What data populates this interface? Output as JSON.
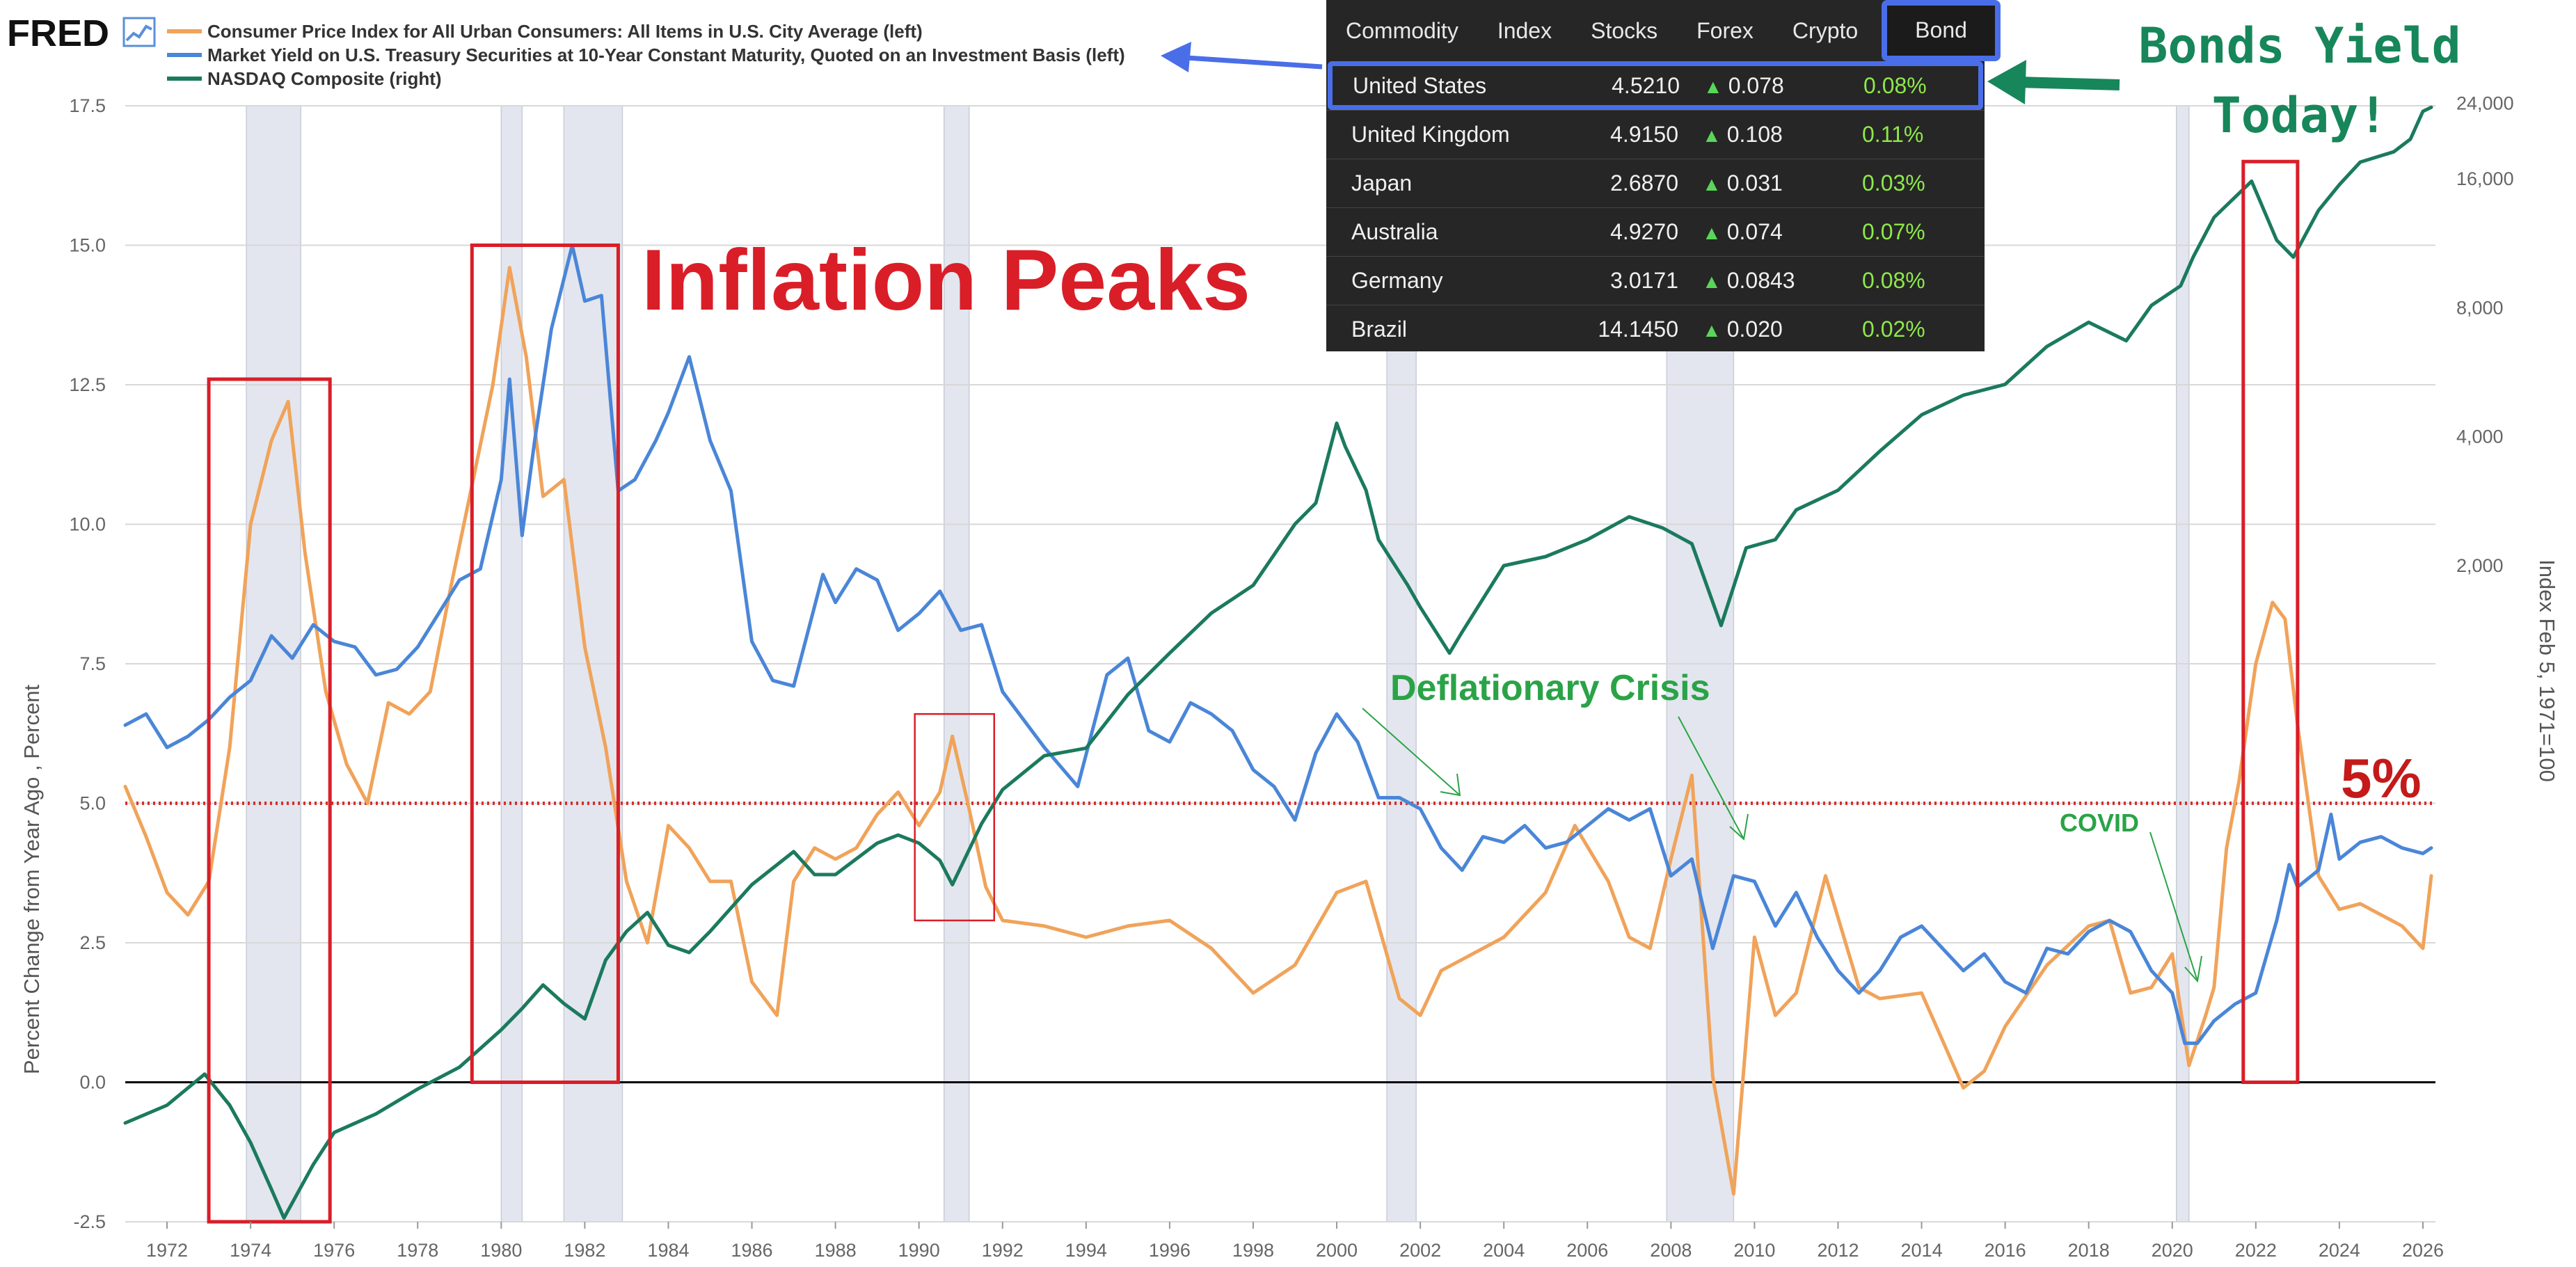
{
  "header": {
    "logo": "FRED",
    "legend": [
      {
        "name": "Consumer Price Index for All Urban Consumers: All Items in U.S. City Average (left)",
        "color": "#f0a35a"
      },
      {
        "name": "Market Yield on U.S. Treasury Securities at 10-Year Constant Maturity, Quoted on an Investment Basis (left)",
        "color": "#4a86d8"
      },
      {
        "name": "NASDAQ Composite (right)",
        "color": "#1b7a5e"
      }
    ]
  },
  "bond_widget": {
    "tabs": [
      "Commodity",
      "Index",
      "Stocks",
      "Forex",
      "Crypto",
      "Bond"
    ],
    "active_tab": "Bond",
    "rows": [
      {
        "country": "United States",
        "yield": "4.5210",
        "change": "0.078",
        "pct": "0.08%"
      },
      {
        "country": "United Kingdom",
        "yield": "4.9150",
        "change": "0.108",
        "pct": "0.11%"
      },
      {
        "country": "Japan",
        "yield": "2.6870",
        "change": "0.031",
        "pct": "0.03%"
      },
      {
        "country": "Australia",
        "yield": "4.9270",
        "change": "0.074",
        "pct": "0.07%"
      },
      {
        "country": "Germany",
        "yield": "3.0171",
        "change": "0.0843",
        "pct": "0.08%"
      },
      {
        "country": "Brazil",
        "yield": "14.1450",
        "change": "0.020",
        "pct": "0.02%"
      }
    ]
  },
  "annotations": {
    "inflation_peaks": "Inflation Peaks",
    "deflationary_crisis": "Deflationary Crisis",
    "covid": "COVID",
    "five_percent": "5%",
    "bonds_line1": "Bonds Yield",
    "bonds_line2": "Today!"
  },
  "chart_data": {
    "type": "line",
    "title": "",
    "ylabel_left": "Percent Change from Year Ago , Percent",
    "ylabel_right": "Index Feb 5, 1971=100",
    "xlim": [
      1971,
      2026.3
    ],
    "ylim_left": [
      -2.5,
      17.5
    ],
    "yticks_left": [
      -2.5,
      0.0,
      2.5,
      5.0,
      7.5,
      10.0,
      12.5,
      15.0,
      17.5
    ],
    "ytick_labels_left": [
      "-2.5",
      "0.0",
      "2.5",
      "5.0",
      "7.5",
      "10.0",
      "12.5",
      "15.0",
      "17.5"
    ],
    "yticks_right": [
      2000,
      4000,
      8000,
      16000,
      24000
    ],
    "ytick_labels_right": [
      "2,000",
      "4,000",
      "8,000",
      "16,000",
      "24,000"
    ],
    "xticks": [
      1972,
      1974,
      1976,
      1978,
      1980,
      1982,
      1984,
      1986,
      1988,
      1990,
      1992,
      1994,
      1996,
      1998,
      2000,
      2002,
      2004,
      2006,
      2008,
      2010,
      2012,
      2014,
      2016,
      2018,
      2020,
      2022,
      2024,
      2026
    ],
    "recessions": [
      [
        1973.9,
        1975.2
      ],
      [
        1980.0,
        1980.5
      ],
      [
        1981.5,
        1982.9
      ],
      [
        1990.6,
        1991.2
      ],
      [
        2001.2,
        2001.9
      ],
      [
        2007.9,
        2009.5
      ],
      [
        2020.1,
        2020.4
      ]
    ],
    "reference_line": {
      "y": 5.0,
      "style": "dotted",
      "color": "#d32f2f"
    },
    "zero_line": {
      "y": 0.0,
      "color": "#000000"
    },
    "highlight_boxes": [
      {
        "x0": 1973.0,
        "x1": 1975.9,
        "y0": -2.5,
        "y1": 12.6
      },
      {
        "x0": 1979.3,
        "x1": 1982.8,
        "y0": 0.0,
        "y1": 15.0
      },
      {
        "x0": 1989.9,
        "x1": 1991.8,
        "y0": 2.9,
        "y1": 6.6
      },
      {
        "x0": 2021.7,
        "x1": 2023.0,
        "y0": 0.0,
        "y1": 16.5
      }
    ],
    "series": [
      {
        "name": "Consumer Price Index for All Urban Consumers: All Items in U.S. City Average (left)",
        "color": "#f0a35a",
        "axis": "left",
        "x": [
          1971.0,
          1971.5,
          1972.0,
          1972.5,
          1973.0,
          1973.5,
          1974.0,
          1974.5,
          1974.9,
          1975.3,
          1975.8,
          1976.3,
          1976.8,
          1977.3,
          1977.8,
          1978.3,
          1978.8,
          1979.3,
          1979.8,
          1980.2,
          1980.6,
          1981.0,
          1981.5,
          1982.0,
          1982.5,
          1983.0,
          1983.5,
          1984.0,
          1984.5,
          1985.0,
          1985.5,
          1986.0,
          1986.6,
          1987.0,
          1987.5,
          1988.0,
          1988.5,
          1989.0,
          1989.5,
          1990.0,
          1990.5,
          1990.8,
          1991.2,
          1991.6,
          1992.0,
          1993.0,
          1994.0,
          1995.0,
          1996.0,
          1997.0,
          1998.0,
          1999.0,
          2000.0,
          2000.7,
          2001.5,
          2002.0,
          2002.5,
          2003.0,
          2004.0,
          2005.0,
          2005.7,
          2006.5,
          2007.0,
          2007.5,
          2008.0,
          2008.5,
          2009.0,
          2009.5,
          2010.0,
          2010.5,
          2011.0,
          2011.7,
          2012.5,
          2013.0,
          2014.0,
          2015.0,
          2015.5,
          2016.0,
          2017.0,
          2018.0,
          2018.5,
          2019.0,
          2019.5,
          2020.0,
          2020.4,
          2020.8,
          2021.0,
          2021.3,
          2021.6,
          2022.0,
          2022.4,
          2022.7,
          2023.0,
          2023.5,
          2024.0,
          2024.5,
          2025.0,
          2025.5,
          2026.0,
          2026.2
        ],
        "y": [
          5.3,
          4.4,
          3.4,
          3.0,
          3.6,
          6.0,
          10.0,
          11.5,
          12.2,
          9.5,
          7.0,
          5.7,
          5.0,
          6.8,
          6.6,
          7.0,
          8.9,
          10.7,
          12.5,
          14.6,
          13.0,
          10.5,
          10.8,
          7.8,
          6.0,
          3.6,
          2.5,
          4.6,
          4.2,
          3.6,
          3.6,
          1.8,
          1.2,
          3.6,
          4.2,
          4.0,
          4.2,
          4.8,
          5.2,
          4.6,
          5.2,
          6.2,
          4.9,
          3.5,
          2.9,
          2.8,
          2.6,
          2.8,
          2.9,
          2.4,
          1.6,
          2.1,
          3.4,
          3.6,
          1.5,
          1.2,
          2.0,
          2.2,
          2.6,
          3.4,
          4.6,
          3.6,
          2.6,
          2.4,
          4.0,
          5.5,
          0.1,
          -2.0,
          2.6,
          1.2,
          1.6,
          3.7,
          1.7,
          1.5,
          1.6,
          -0.1,
          0.2,
          1.0,
          2.1,
          2.8,
          2.9,
          1.6,
          1.7,
          2.3,
          0.3,
          1.2,
          1.7,
          4.2,
          5.4,
          7.5,
          8.6,
          8.3,
          6.4,
          3.7,
          3.1,
          3.2,
          3.0,
          2.8,
          2.4,
          3.7
        ]
      },
      {
        "name": "Market Yield on U.S. Treasury Securities at 10-Year Constant Maturity, Quoted on an Investment Basis (left)",
        "color": "#4a86d8",
        "axis": "left",
        "x": [
          1971.0,
          1971.5,
          1972.0,
          1972.5,
          1973.0,
          1973.5,
          1974.0,
          1974.5,
          1975.0,
          1975.5,
          1976.0,
          1976.5,
          1977.0,
          1977.5,
          1978.0,
          1978.5,
          1979.0,
          1979.5,
          1980.0,
          1980.2,
          1980.5,
          1980.8,
          1981.2,
          1981.7,
          1982.0,
          1982.4,
          1982.8,
          1983.2,
          1983.7,
          1984.0,
          1984.5,
          1985.0,
          1985.5,
          1986.0,
          1986.5,
          1987.0,
          1987.7,
          1988.0,
          1988.5,
          1989.0,
          1989.5,
          1990.0,
          1990.5,
          1991.0,
          1991.5,
          1992.0,
          1993.0,
          1993.8,
          1994.5,
          1995.0,
          1995.5,
          1996.0,
          1996.5,
          1997.0,
          1997.5,
          1998.0,
          1998.5,
          1999.0,
          1999.5,
          2000.0,
          2000.5,
          2001.0,
          2001.5,
          2002.0,
          2002.5,
          2003.0,
          2003.5,
          2004.0,
          2004.5,
          2005.0,
          2005.5,
          2006.0,
          2006.5,
          2007.0,
          2007.5,
          2008.0,
          2008.5,
          2009.0,
          2009.5,
          2010.0,
          2010.5,
          2011.0,
          2011.5,
          2012.0,
          2012.5,
          2013.0,
          2013.5,
          2014.0,
          2014.5,
          2015.0,
          2015.5,
          2016.0,
          2016.5,
          2017.0,
          2017.5,
          2018.0,
          2018.5,
          2019.0,
          2019.5,
          2020.0,
          2020.3,
          2020.6,
          2021.0,
          2021.5,
          2022.0,
          2022.5,
          2022.8,
          2023.0,
          2023.5,
          2023.8,
          2024.0,
          2024.5,
          2025.0,
          2025.5,
          2026.0,
          2026.2
        ],
        "y": [
          6.4,
          6.6,
          6.0,
          6.2,
          6.5,
          6.9,
          7.2,
          8.0,
          7.6,
          8.2,
          7.9,
          7.8,
          7.3,
          7.4,
          7.8,
          8.4,
          9.0,
          9.2,
          10.8,
          12.6,
          9.8,
          11.5,
          13.5,
          15.0,
          14.0,
          14.1,
          10.6,
          10.8,
          11.5,
          12.0,
          13.0,
          11.5,
          10.6,
          7.9,
          7.2,
          7.1,
          9.1,
          8.6,
          9.2,
          9.0,
          8.1,
          8.4,
          8.8,
          8.1,
          8.2,
          7.0,
          6.0,
          5.3,
          7.3,
          7.6,
          6.3,
          6.1,
          6.8,
          6.6,
          6.3,
          5.6,
          5.3,
          4.7,
          5.9,
          6.6,
          6.1,
          5.1,
          5.1,
          4.9,
          4.2,
          3.8,
          4.4,
          4.3,
          4.6,
          4.2,
          4.3,
          4.6,
          4.9,
          4.7,
          4.9,
          3.7,
          4.0,
          2.4,
          3.7,
          3.6,
          2.8,
          3.4,
          2.6,
          2.0,
          1.6,
          2.0,
          2.6,
          2.8,
          2.4,
          2.0,
          2.3,
          1.8,
          1.6,
          2.4,
          2.3,
          2.7,
          2.9,
          2.7,
          2.0,
          1.6,
          0.7,
          0.7,
          1.1,
          1.4,
          1.6,
          2.9,
          3.9,
          3.5,
          3.8,
          4.8,
          4.0,
          4.3,
          4.4,
          4.2,
          4.1,
          4.2
        ]
      },
      {
        "name": "NASDAQ Composite (right)",
        "color": "#1b7a5e",
        "axis": "right",
        "x": [
          1971.0,
          1972.0,
          1972.9,
          1973.5,
          1974.0,
          1974.5,
          1974.8,
          1975.5,
          1976.0,
          1977.0,
          1978.0,
          1979.0,
          1980.0,
          1980.5,
          1981.0,
          1981.5,
          1982.0,
          1982.5,
          1983.0,
          1983.5,
          1984.0,
          1984.5,
          1985.0,
          1986.0,
          1987.0,
          1987.5,
          1988.0,
          1989.0,
          1989.5,
          1990.0,
          1990.5,
          1990.8,
          1991.5,
          1992.0,
          1993.0,
          1994.0,
          1995.0,
          1996.0,
          1997.0,
          1998.0,
          1999.0,
          1999.5,
          2000.0,
          2000.2,
          2000.7,
          2001.0,
          2001.7,
          2002.0,
          2002.7,
          2003.0,
          2004.0,
          2005.0,
          2006.0,
          2007.0,
          2007.8,
          2008.5,
          2009.2,
          2009.8,
          2010.5,
          2011.0,
          2012.0,
          2013.0,
          2014.0,
          2015.0,
          2016.0,
          2017.0,
          2018.0,
          2018.9,
          2019.5,
          2020.2,
          2020.5,
          2021.0,
          2021.9,
          2022.5,
          2022.9,
          2023.5,
          2024.0,
          2024.5,
          2025.3,
          2025.7,
          2026.0,
          2026.2
        ],
        "y": [
          100,
          110,
          130,
          110,
          90,
          70,
          60,
          80,
          95,
          105,
          120,
          135,
          165,
          185,
          210,
          190,
          175,
          240,
          280,
          310,
          260,
          250,
          280,
          360,
          430,
          380,
          380,
          450,
          470,
          450,
          410,
          360,
          500,
          600,
          720,
          750,
          1000,
          1250,
          1550,
          1800,
          2500,
          2800,
          4300,
          3800,
          3000,
          2300,
          1800,
          1600,
          1250,
          1400,
          2000,
          2100,
          2300,
          2600,
          2450,
          2250,
          1450,
          2200,
          2300,
          2700,
          3000,
          3700,
          4500,
          5000,
          5300,
          6500,
          7400,
          6700,
          8100,
          9000,
          10500,
          13000,
          15800,
          11500,
          10500,
          13500,
          15500,
          17500,
          18500,
          19800,
          23000,
          23500
        ]
      }
    ]
  }
}
